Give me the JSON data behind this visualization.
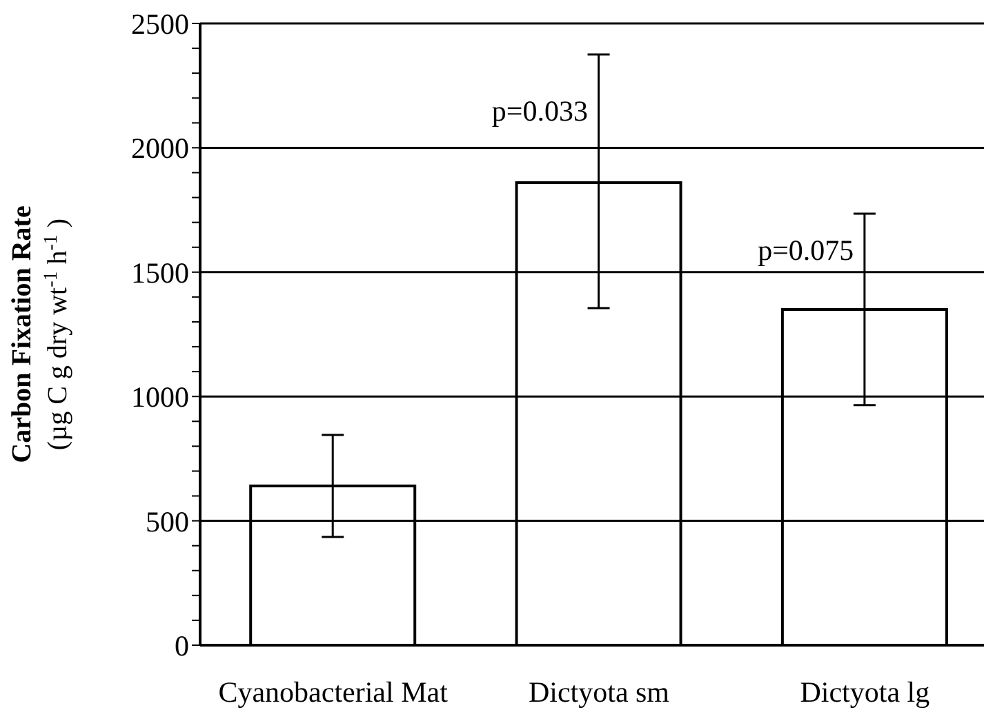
{
  "chart_data": {
    "type": "bar",
    "ylabel": "Carbon Fixation Rate\n(µg C g dry wt$^{-1}$ h$^{-1}$)",
    "categories": [
      "Cyanobacterial Mat",
      "Dictyota sm",
      "Dictyota lg"
    ],
    "values": [
      640,
      1860,
      1350
    ],
    "color": "#ffffff",
    "errors": [
      [
        435,
        845
      ],
      [
        1355,
        2375
      ],
      [
        965,
        1735
      ]
    ],
    "ylim": [
      0,
      2500
    ],
    "yticks": [
      0,
      {
        "value": 100,
        "label": null
      },
      {
        "value": 200,
        "label": null
      },
      {
        "value": 300,
        "label": null
      },
      {
        "value": 400,
        "label": null
      },
      500,
      {
        "value": 600,
        "label": null
      },
      {
        "value": 700,
        "label": null
      },
      {
        "value": 800,
        "label": null
      },
      {
        "value": 900,
        "label": null
      },
      1000,
      {
        "value": 1100,
        "label": null
      },
      {
        "value": 1200,
        "label": null
      },
      {
        "value": 1300,
        "label": null
      },
      {
        "value": 1400,
        "label": null
      },
      1500,
      {
        "value": 1600,
        "label": null
      },
      {
        "value": 1700,
        "label": null
      },
      {
        "value": 1800,
        "label": null
      },
      {
        "value": 1900,
        "label": null
      },
      2000,
      {
        "value": 2100,
        "label": null
      },
      {
        "value": 2200,
        "label": null
      },
      {
        "value": 2300,
        "label": null
      },
      {
        "value": 2400,
        "label": null
      },
      2500
    ],
    "grid": "y",
    "annotations": [
      {
        "text": "p=0.033",
        "x": "Dictyota sm",
        "y": 2150
      },
      {
        "text": "p=0.075",
        "x": "Dictyota lg",
        "y": 1590
      }
    ]
  }
}
